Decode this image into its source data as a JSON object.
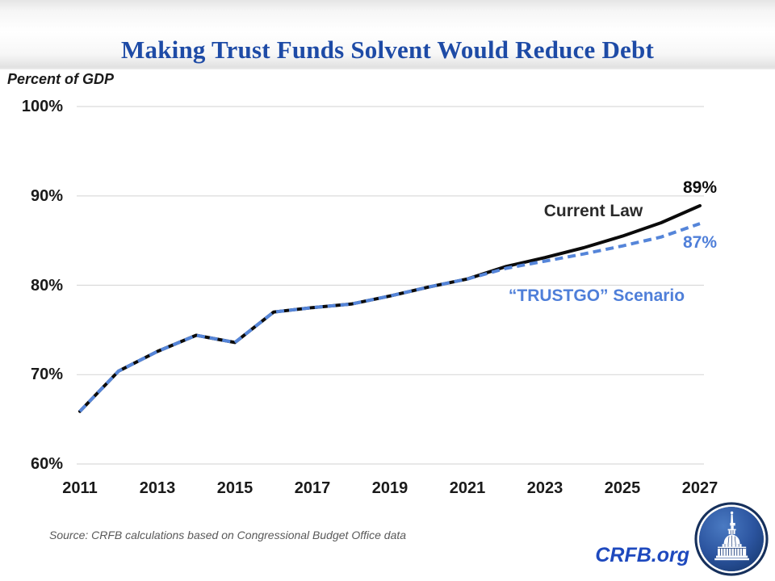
{
  "page": {
    "title": "Making Trust Funds Solvent Would Reduce Debt"
  },
  "chart_data": {
    "type": "line",
    "title": "Making Trust Funds Solvent Would Reduce Debt",
    "ylabel": "Percent of GDP",
    "xlabel": "",
    "grid": true,
    "legend_position": "inline-annotations",
    "ylim": [
      60,
      100
    ],
    "x": [
      2011,
      2012,
      2013,
      2014,
      2015,
      2016,
      2017,
      2018,
      2019,
      2020,
      2021,
      2022,
      2023,
      2024,
      2025,
      2026,
      2027
    ],
    "x_tick_labels": [
      "2011",
      "2013",
      "2015",
      "2017",
      "2019",
      "2021",
      "2023",
      "2025",
      "2027"
    ],
    "y_tick_values": [
      100,
      90,
      80,
      70,
      60
    ],
    "y_tick_labels": [
      "100%",
      "90%",
      "80%",
      "70%",
      "60%"
    ],
    "series": [
      {
        "name": "Current Law",
        "style": "solid",
        "color": "#0b0b0b",
        "values": [
          65.9,
          70.4,
          72.6,
          74.4,
          73.6,
          77.0,
          77.5,
          77.9,
          78.8,
          79.8,
          80.7,
          82.1,
          83.1,
          84.2,
          85.5,
          87.0,
          88.9
        ]
      },
      {
        "name": "“TRUSTGO” Scenario",
        "style": "dashed",
        "color": "#5585d9",
        "values": [
          65.9,
          70.4,
          72.6,
          74.4,
          73.6,
          77.0,
          77.5,
          77.9,
          78.8,
          79.8,
          80.7,
          81.9,
          82.7,
          83.5,
          84.4,
          85.4,
          86.9
        ]
      }
    ],
    "annotations": [
      {
        "id": "current-law-label",
        "text": "Current Law"
      },
      {
        "id": "current-law-end-value",
        "text": "89%"
      },
      {
        "id": "trustgo-end-value",
        "text": "87%"
      },
      {
        "id": "trustgo-label",
        "text": "“TRUSTGO” Scenario"
      }
    ]
  },
  "footer": {
    "source": "Source: CRFB calculations based on Congressional Budget Office data",
    "site": "CRFB.org"
  }
}
